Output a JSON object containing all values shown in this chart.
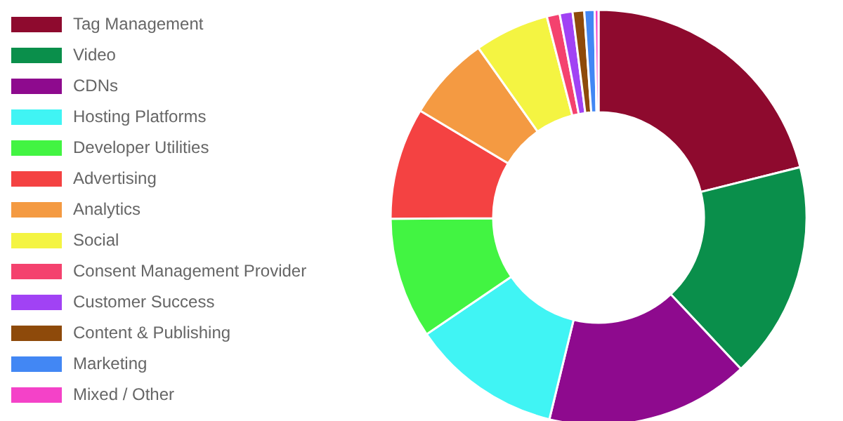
{
  "chart_data": {
    "type": "donut",
    "categories": [
      "Tag Management",
      "Video",
      "CDNs",
      "Hosting Platforms",
      "Developer Utilities",
      "Advertising",
      "Analytics",
      "Social",
      "Consent Management Provider",
      "Customer Success",
      "Content & Publishing",
      "Marketing",
      "Mixed / Other"
    ],
    "values": [
      21.1,
      16.9,
      15.8,
      11.7,
      9.4,
      8.7,
      6.6,
      5.8,
      1.0,
      1.0,
      0.9,
      0.8,
      0.3
    ],
    "colors": [
      "#8e0a2e",
      "#0a8f4b",
      "#8e0a8e",
      "#40f4f4",
      "#42f442",
      "#f44242",
      "#f49a42",
      "#f4f442",
      "#f4426e",
      "#a142f4",
      "#8e4a0a",
      "#4287f4",
      "#f442c8"
    ],
    "legend": "left"
  }
}
